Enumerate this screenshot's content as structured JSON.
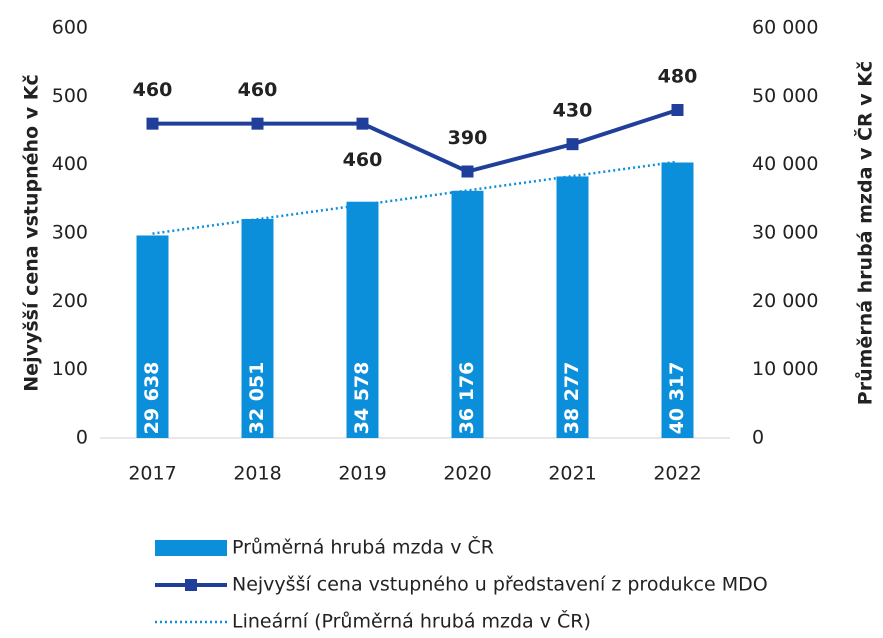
{
  "chart_data": {
    "type": "bar-line",
    "categories": [
      "2017",
      "2018",
      "2019",
      "2020",
      "2021",
      "2022"
    ],
    "ylabel": "Nejvyšší cena vstupného v Kč",
    "y2label": "Průměrná hrubá mzda v ČR v Kč",
    "ylim": [
      0,
      600
    ],
    "yticks": [
      0,
      100,
      200,
      300,
      400,
      500,
      600
    ],
    "y2lim": [
      0,
      60000
    ],
    "y2ticks": [
      0,
      {
        "value": 10000,
        "label": "10 000"
      },
      {
        "value": 20000,
        "label": "20 000"
      },
      {
        "value": 30000,
        "label": "30 000"
      },
      {
        "value": 40000,
        "label": "40 000"
      },
      {
        "value": 50000,
        "label": "50 000"
      },
      {
        "value": 60000,
        "label": "60 000"
      }
    ],
    "series": [
      {
        "name": "Průměrná hrubá mzda v ČR",
        "type": "bar",
        "axis": "y2",
        "color": "#0b8fdb",
        "values": [
          29638,
          32051,
          34578,
          36176,
          38277,
          40317
        ],
        "value_labels": [
          "29 638",
          "32 051",
          "34 578",
          "36 176",
          "38 277",
          "40 317"
        ]
      },
      {
        "name": "Nejvyšší cena vstupného u představení z produkce MDO",
        "type": "line",
        "axis": "y",
        "color": "#203f9a",
        "values": [
          460,
          460,
          460,
          390,
          430,
          480
        ]
      },
      {
        "name": "Lineární (Průměrná hrubá mzda v ČR)",
        "type": "trendline",
        "axis": "y2",
        "color": "#0b8fdb",
        "values": [
          29911,
          32016,
          34121,
          36226,
          38331,
          40435
        ]
      }
    ],
    "grid": false,
    "legend": "bottom"
  }
}
